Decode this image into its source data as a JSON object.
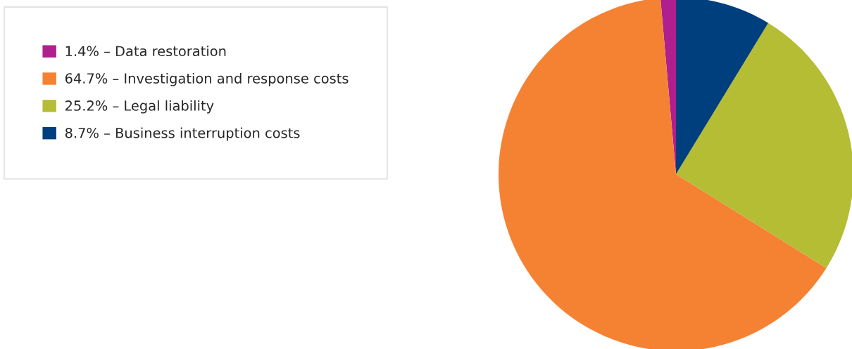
{
  "chart_data": {
    "type": "pie",
    "categories": [
      "1.4% – Data restoration",
      "64.7% – Investigation and response costs",
      "25.2% – Legal liability",
      "8.7% – Business interruption costs"
    ],
    "values": [
      1.4,
      64.7,
      25.2,
      8.7
    ],
    "colors": [
      "#b01f8e",
      "#f58233",
      "#b5bd35",
      "#003f7d"
    ],
    "legend": "top left"
  }
}
